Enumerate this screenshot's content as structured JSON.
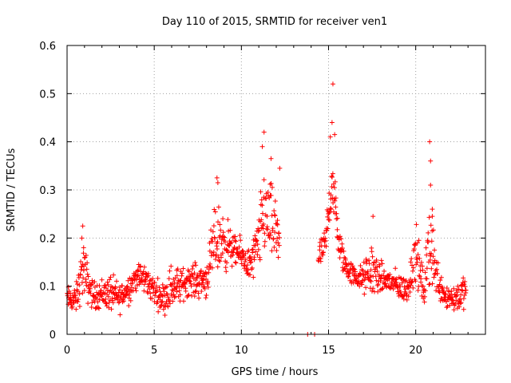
{
  "chart_data": {
    "type": "scatter",
    "title": "Day 110 of 2015, SRMTID for receiver ven1",
    "xlabel": "GPS time / hours",
    "ylabel": "SRMTID / TECUs",
    "xlim": [
      0,
      24
    ],
    "ylim": [
      0,
      0.6
    ],
    "x_ticks": [
      0,
      5,
      10,
      15,
      20
    ],
    "x_tick_labels": [
      "0",
      "5",
      "10",
      "15",
      "20"
    ],
    "y_ticks": [
      0,
      0.1,
      0.2,
      0.3,
      0.4,
      0.5,
      0.6
    ],
    "y_tick_labels": [
      "0",
      "0.1",
      "0.2",
      "0.3",
      "0.4",
      "0.5",
      "0.6"
    ],
    "grid": true,
    "marker": "+",
    "series": [
      {
        "name": "SRMTID",
        "color": "#ff0000",
        "envelope": [
          {
            "x": 0.0,
            "lo": 0.04,
            "hi": 0.11
          },
          {
            "x": 0.5,
            "lo": 0.03,
            "hi": 0.11
          },
          {
            "x": 0.9,
            "lo": 0.05,
            "hi": 0.22
          },
          {
            "x": 1.5,
            "lo": 0.04,
            "hi": 0.12
          },
          {
            "x": 2.0,
            "lo": 0.04,
            "hi": 0.13
          },
          {
            "x": 2.5,
            "lo": 0.03,
            "hi": 0.14
          },
          {
            "x": 3.0,
            "lo": 0.03,
            "hi": 0.12
          },
          {
            "x": 3.5,
            "lo": 0.05,
            "hi": 0.14
          },
          {
            "x": 4.0,
            "lo": 0.08,
            "hi": 0.16
          },
          {
            "x": 4.5,
            "lo": 0.07,
            "hi": 0.16
          },
          {
            "x": 5.0,
            "lo": 0.05,
            "hi": 0.13
          },
          {
            "x": 5.5,
            "lo": 0.03,
            "hi": 0.12
          },
          {
            "x": 6.0,
            "lo": 0.03,
            "hi": 0.17
          },
          {
            "x": 6.5,
            "lo": 0.05,
            "hi": 0.15
          },
          {
            "x": 7.0,
            "lo": 0.07,
            "hi": 0.16
          },
          {
            "x": 7.5,
            "lo": 0.06,
            "hi": 0.16
          },
          {
            "x": 8.0,
            "lo": 0.06,
            "hi": 0.17
          },
          {
            "x": 8.5,
            "lo": 0.09,
            "hi": 0.3
          },
          {
            "x": 9.0,
            "lo": 0.1,
            "hi": 0.29
          },
          {
            "x": 9.5,
            "lo": 0.13,
            "hi": 0.22
          },
          {
            "x": 10.0,
            "lo": 0.12,
            "hi": 0.21
          },
          {
            "x": 10.5,
            "lo": 0.09,
            "hi": 0.19
          },
          {
            "x": 11.0,
            "lo": 0.1,
            "hi": 0.28
          },
          {
            "x": 11.3,
            "lo": 0.12,
            "hi": 0.4
          },
          {
            "x": 11.8,
            "lo": 0.11,
            "hi": 0.33
          },
          {
            "x": 12.2,
            "lo": 0.08,
            "hi": 0.33
          }
        ],
        "envelope_segment_2": [
          {
            "x": 14.4,
            "lo": 0.12,
            "hi": 0.2
          },
          {
            "x": 14.8,
            "lo": 0.13,
            "hi": 0.23
          },
          {
            "x": 15.2,
            "lo": 0.22,
            "hi": 0.43
          },
          {
            "x": 15.6,
            "lo": 0.13,
            "hi": 0.24
          },
          {
            "x": 16.0,
            "lo": 0.1,
            "hi": 0.18
          },
          {
            "x": 16.5,
            "lo": 0.09,
            "hi": 0.15
          },
          {
            "x": 17.0,
            "lo": 0.07,
            "hi": 0.16
          },
          {
            "x": 17.5,
            "lo": 0.05,
            "hi": 0.22
          },
          {
            "x": 18.0,
            "lo": 0.07,
            "hi": 0.16
          },
          {
            "x": 18.5,
            "lo": 0.07,
            "hi": 0.15
          },
          {
            "x": 19.0,
            "lo": 0.06,
            "hi": 0.14
          },
          {
            "x": 19.5,
            "lo": 0.05,
            "hi": 0.13
          },
          {
            "x": 20.0,
            "lo": 0.08,
            "hi": 0.26
          },
          {
            "x": 20.5,
            "lo": 0.04,
            "hi": 0.13
          },
          {
            "x": 20.8,
            "lo": 0.04,
            "hi": 0.37
          },
          {
            "x": 21.2,
            "lo": 0.06,
            "hi": 0.18
          },
          {
            "x": 21.7,
            "lo": 0.04,
            "hi": 0.12
          },
          {
            "x": 22.2,
            "lo": 0.03,
            "hi": 0.12
          },
          {
            "x": 22.9,
            "lo": 0.04,
            "hi": 0.14
          }
        ],
        "outliers": [
          {
            "x": 15.25,
            "y": 0.52
          },
          {
            "x": 15.2,
            "y": 0.44
          },
          {
            "x": 11.3,
            "y": 0.42
          },
          {
            "x": 15.35,
            "y": 0.415
          },
          {
            "x": 20.8,
            "y": 0.4
          },
          {
            "x": 15.1,
            "y": 0.41
          },
          {
            "x": 11.2,
            "y": 0.39
          },
          {
            "x": 20.85,
            "y": 0.36
          },
          {
            "x": 12.2,
            "y": 0.345
          },
          {
            "x": 11.7,
            "y": 0.365
          },
          {
            "x": 8.6,
            "y": 0.325
          },
          {
            "x": 8.65,
            "y": 0.315
          },
          {
            "x": 20.85,
            "y": 0.31
          },
          {
            "x": 20.95,
            "y": 0.245
          },
          {
            "x": 17.55,
            "y": 0.245
          },
          {
            "x": 20.95,
            "y": 0.26
          },
          {
            "x": 0.9,
            "y": 0.225
          },
          {
            "x": 0.85,
            "y": 0.2
          },
          {
            "x": 0.95,
            "y": 0.18
          },
          {
            "x": 13.8,
            "y": 0.0
          },
          {
            "x": 14.2,
            "y": 0.0
          }
        ]
      }
    ]
  }
}
